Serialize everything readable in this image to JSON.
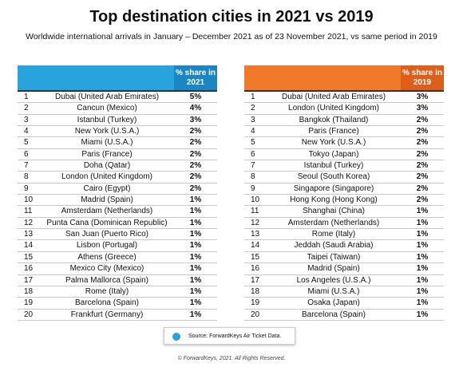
{
  "header": {
    "title": "Top destination cities in 2021 vs 2019",
    "subtitle": "Worldwide international arrivals in January – December 2021 as of 23 November 2021, vs same period in 2019"
  },
  "tables": [
    {
      "share_header": "% share in 2021",
      "rows": [
        [
          "1",
          "Dubai (United Arab Emirates)",
          "5%"
        ],
        [
          "2",
          "Cancun (Mexico)",
          "4%"
        ],
        [
          "3",
          "Istanbul (Turkey)",
          "3%"
        ],
        [
          "4",
          "New York (U.S.A.)",
          "2%"
        ],
        [
          "5",
          "Miami (U.S.A.)",
          "2%"
        ],
        [
          "6",
          "Paris (France)",
          "2%"
        ],
        [
          "7",
          "Doha (Qatar)",
          "2%"
        ],
        [
          "8",
          "London (United Kingdom)",
          "2%"
        ],
        [
          "9",
          "Cairo (Egypt)",
          "2%"
        ],
        [
          "10",
          "Madrid (Spain)",
          "1%"
        ],
        [
          "11",
          "Amsterdam (Netherlands)",
          "1%"
        ],
        [
          "12",
          "Punta Cana (Dominican Republic)",
          "1%"
        ],
        [
          "13",
          "San Juan (Puerto Rico)",
          "1%"
        ],
        [
          "14",
          "Lisbon (Portugal)",
          "1%"
        ],
        [
          "15",
          "Athens (Greece)",
          "1%"
        ],
        [
          "16",
          "Mexico City (Mexico)",
          "1%"
        ],
        [
          "17",
          "Palma Mallorca (Spain)",
          "1%"
        ],
        [
          "18",
          "Rome (Italy)",
          "1%"
        ],
        [
          "19",
          "Barcelona (Spain)",
          "1%"
        ],
        [
          "20",
          "Frankfurt (Germany)",
          "1%"
        ]
      ]
    },
    {
      "share_header": "% share in 2019",
      "rows": [
        [
          "1",
          "Dubai (United Arab Emirates)",
          "3%"
        ],
        [
          "2",
          "London (United Kingdom)",
          "3%"
        ],
        [
          "3",
          "Bangkok (Thailand)",
          "2%"
        ],
        [
          "4",
          "Paris (France)",
          "2%"
        ],
        [
          "5",
          "New York (U.S.A.)",
          "2%"
        ],
        [
          "6",
          "Tokyo (Japan)",
          "2%"
        ],
        [
          "7",
          "Istanbul (Turkey)",
          "2%"
        ],
        [
          "8",
          "Seoul (South Korea)",
          "2%"
        ],
        [
          "9",
          "Singapore (Singapore)",
          "2%"
        ],
        [
          "10",
          "Hong Kong (Hong Kong)",
          "2%"
        ],
        [
          "11",
          "Shanghai (China)",
          "1%"
        ],
        [
          "12",
          "Amsterdam (Netherlands)",
          "1%"
        ],
        [
          "13",
          "Rome (Italy)",
          "1%"
        ],
        [
          "14",
          "Jeddah (Saudi Arabia)",
          "1%"
        ],
        [
          "15",
          "Taipei (Taiwan)",
          "1%"
        ],
        [
          "16",
          "Madrid (Spain)",
          "1%"
        ],
        [
          "17",
          "Los Angeles (U.S.A.)",
          "1%"
        ],
        [
          "18",
          "Miami (U.S.A.)",
          "1%"
        ],
        [
          "19",
          "Osaka (Japan)",
          "1%"
        ],
        [
          "20",
          "Barcelona (Spain)",
          "1%"
        ]
      ]
    }
  ],
  "footer": {
    "source": "Source: ForwardKeys Air Ticket Data.",
    "copyright": "© ForwardKeys, 2021. All Rights Reserved."
  }
}
